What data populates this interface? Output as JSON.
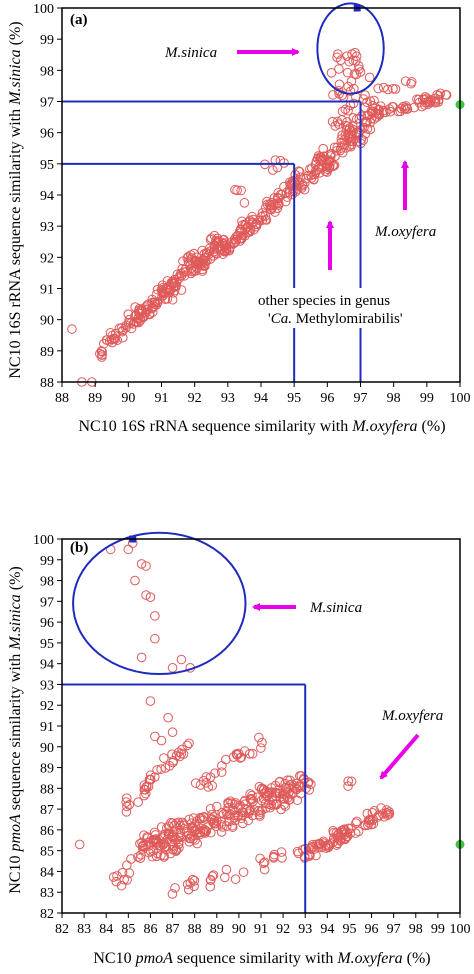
{
  "colors": {
    "marker": "#e05a5a",
    "threshold": "#1f2bbf",
    "arrow": "#e800e8",
    "reference_point": "#3ec43e",
    "axis": "#000000"
  },
  "chart_data": [
    {
      "type": "scatter",
      "panel_label": "(a)",
      "xlabel_parts": [
        "NC10 16S rRNA sequence similarity with ",
        "M.oxyfera",
        " (%)"
      ],
      "ylabel_parts": [
        "NC10 16S rRNA sequence similarity with ",
        "M.sinica",
        " (%)"
      ],
      "xlim": [
        88,
        100
      ],
      "ylim": [
        88,
        100
      ],
      "xticks": [
        "88",
        "89",
        "90",
        "91",
        "92",
        "93",
        "94",
        "95",
        "96",
        "97",
        "98",
        "99",
        "100"
      ],
      "yticks": [
        "88",
        "89",
        "90",
        "91",
        "92",
        "93",
        "94",
        "95",
        "96",
        "97",
        "98",
        "99",
        "100"
      ],
      "annotations": {
        "sinica": "M.sinica",
        "oxyfera": "M.oxyfera",
        "other_line1": "other species in genus",
        "other_line2_parts": [
          "'",
          "Ca.",
          " Methylomirabilis'"
        ]
      },
      "thresholds": [
        {
          "axis": "x",
          "value": 95,
          "upto": 95
        },
        {
          "axis": "y",
          "value": 95,
          "upto": 95
        },
        {
          "axis": "x",
          "value": 97,
          "upto": 97
        },
        {
          "axis": "y",
          "value": 97,
          "upto": 97
        }
      ],
      "highlight_points": [
        {
          "kind": "sinica",
          "x": 96.9,
          "y": 100.0
        },
        {
          "kind": "oxyfera",
          "x": 100.0,
          "y": 96.9
        }
      ],
      "cluster_circle": {
        "cx": 96.7,
        "cy": 98.7,
        "rx": 1.0,
        "ry": 1.45
      },
      "point_clusters": [
        {
          "x": [
            88.3,
            88.6,
            88.9,
            89.2
          ],
          "y": [
            89.7,
            88.0,
            88.0,
            88.8
          ],
          "spread": 0.0,
          "n": 4,
          "seed": 11
        },
        {
          "x": [
            89.0,
            89.6
          ],
          "y": [
            88.8,
            89.6
          ],
          "spread": 0.25,
          "n": 14,
          "seed": 12
        },
        {
          "x": [
            89.6,
            90.4
          ],
          "y": [
            89.4,
            90.3
          ],
          "spread": 0.35,
          "n": 30,
          "seed": 13
        },
        {
          "x": [
            90.4,
            91.2
          ],
          "y": [
            90.0,
            91.1
          ],
          "spread": 0.4,
          "n": 45,
          "seed": 14
        },
        {
          "x": [
            91.2,
            92.0
          ],
          "y": [
            90.8,
            92.0
          ],
          "spread": 0.4,
          "n": 50,
          "seed": 15
        },
        {
          "x": [
            92.0,
            92.8
          ],
          "y": [
            91.6,
            92.6
          ],
          "spread": 0.4,
          "n": 55,
          "seed": 16
        },
        {
          "x": [
            92.8,
            93.6
          ],
          "y": [
            92.2,
            93.0
          ],
          "spread": 0.35,
          "n": 45,
          "seed": 17
        },
        {
          "x": [
            93.6,
            94.4
          ],
          "y": [
            92.8,
            93.8
          ],
          "spread": 0.35,
          "n": 35,
          "seed": 18
        },
        {
          "x": [
            94.4,
            95.2
          ],
          "y": [
            93.6,
            94.7
          ],
          "spread": 0.35,
          "n": 35,
          "seed": 19
        },
        {
          "x": [
            95.2,
            96.0
          ],
          "y": [
            94.2,
            95.4
          ],
          "spread": 0.35,
          "n": 40,
          "seed": 20
        },
        {
          "x": [
            96.0,
            96.8
          ],
          "y": [
            94.8,
            96.2
          ],
          "spread": 0.4,
          "n": 50,
          "seed": 21
        },
        {
          "x": [
            96.8,
            97.6
          ],
          "y": [
            95.6,
            97.0
          ],
          "spread": 0.35,
          "n": 40,
          "seed": 22
        },
        {
          "x": [
            97.6,
            99.6
          ],
          "y": [
            96.6,
            97.2
          ],
          "spread": 0.3,
          "n": 45,
          "seed": 23
        },
        {
          "x": [
            97.4,
            98.6
          ],
          "y": [
            97.4,
            97.6
          ],
          "spread": 0.25,
          "n": 8,
          "seed": 24
        },
        {
          "x": [
            96.2,
            97.2
          ],
          "y": [
            97.4,
            97.4
          ],
          "spread": 0.35,
          "n": 50,
          "seed": 25,
          "spreadY": 2.4
        },
        {
          "x": [
            94.0,
            95.5
          ],
          "y": [
            94.8,
            95.6
          ],
          "spread": 0.3,
          "n": 6,
          "seed": 26
        },
        {
          "x": [
            93.2,
            93.6
          ],
          "y": [
            94.3,
            93.8
          ],
          "spread": 0.2,
          "n": 4,
          "seed": 27
        }
      ]
    },
    {
      "type": "scatter",
      "panel_label": "(b)",
      "xlabel_parts": [
        "NC10 ",
        "pmoA",
        " sequence similarity with ",
        "M.oxyfera",
        " (%)"
      ],
      "ylabel_parts": [
        "NC10 ",
        "pmoA",
        " sequence similarity with ",
        "M.sinica",
        " (%)"
      ],
      "xlim": [
        82,
        100
      ],
      "ylim": [
        82,
        100
      ],
      "xticks": [
        "82",
        "83",
        "84",
        "85",
        "86",
        "87",
        "88",
        "89",
        "90",
        "91",
        "92",
        "93",
        "94",
        "95",
        "96",
        "97",
        "98",
        "99",
        "100"
      ],
      "yticks": [
        "82",
        "83",
        "84",
        "85",
        "86",
        "87",
        "88",
        "89",
        "90",
        "91",
        "92",
        "93",
        "94",
        "95",
        "96",
        "97",
        "98",
        "99",
        "100"
      ],
      "annotations": {
        "sinica": "M.sinica",
        "oxyfera": "M.oxyfera"
      },
      "thresholds": [
        {
          "axis": "x",
          "value": 93,
          "upto": 93
        },
        {
          "axis": "y",
          "value": 93,
          "upto": 93
        }
      ],
      "highlight_points": [
        {
          "kind": "sinica",
          "x": 85.2,
          "y": 100.0
        },
        {
          "kind": "oxyfera",
          "x": 100.0,
          "y": 85.3
        }
      ],
      "cluster_circle": {
        "cx": 86.4,
        "cy": 96.9,
        "rx": 3.9,
        "ry": 3.4
      },
      "point_clusters": [
        {
          "x": [
            84.2,
            85.0,
            85.2,
            85.8,
            85.6,
            85.8,
            86.0,
            86.2,
            86.2,
            85.6,
            85.3,
            87.0,
            87.4,
            87.8
          ],
          "y": [
            99.5,
            99.5,
            99.8,
            98.7,
            98.8,
            97.3,
            97.2,
            96.3,
            95.2,
            94.3,
            98.0,
            93.8,
            94.2,
            93.8
          ],
          "spread": 0.0,
          "n": 14,
          "seed": 31
        },
        {
          "x": [
            86.0,
            86.8,
            86.5,
            87.0,
            86.2
          ],
          "y": [
            92.2,
            91.4,
            90.3,
            90.7,
            90.5
          ],
          "spread": 0.0,
          "n": 5,
          "seed": 32
        },
        {
          "x": [
            85.0,
            87.5
          ],
          "y": [
            87.0,
            90.0
          ],
          "spread": 0.6,
          "n": 35,
          "seed": 33
        },
        {
          "x": [
            86.0,
            93.0
          ],
          "y": [
            85.2,
            88.2
          ],
          "spread": 1.2,
          "n": 260,
          "seed": 34
        },
        {
          "x": [
            88.2,
            91.2
          ],
          "y": [
            88.0,
            90.4
          ],
          "spread": 0.5,
          "n": 25,
          "seed": 35
        },
        {
          "x": [
            84.2,
            86.2
          ],
          "y": [
            83.0,
            86.0
          ],
          "spread": 0.6,
          "n": 22,
          "seed": 36
        },
        {
          "x": [
            87.0,
            93.0
          ],
          "y": [
            83.0,
            85.0
          ],
          "spread": 0.6,
          "n": 30,
          "seed": 37
        },
        {
          "x": [
            93.0,
            96.8
          ],
          "y": [
            84.8,
            87.0
          ],
          "spread": 0.55,
          "n": 90,
          "seed": 38
        },
        {
          "x": [
            94.8,
            95.2
          ],
          "y": [
            88.0,
            88.6
          ],
          "spread": 0.2,
          "n": 3,
          "seed": 39
        },
        {
          "x": [
            82.8,
            82.8
          ],
          "y": [
            85.3,
            85.3
          ],
          "spread": 0.0,
          "n": 1,
          "seed": 40
        }
      ]
    }
  ]
}
